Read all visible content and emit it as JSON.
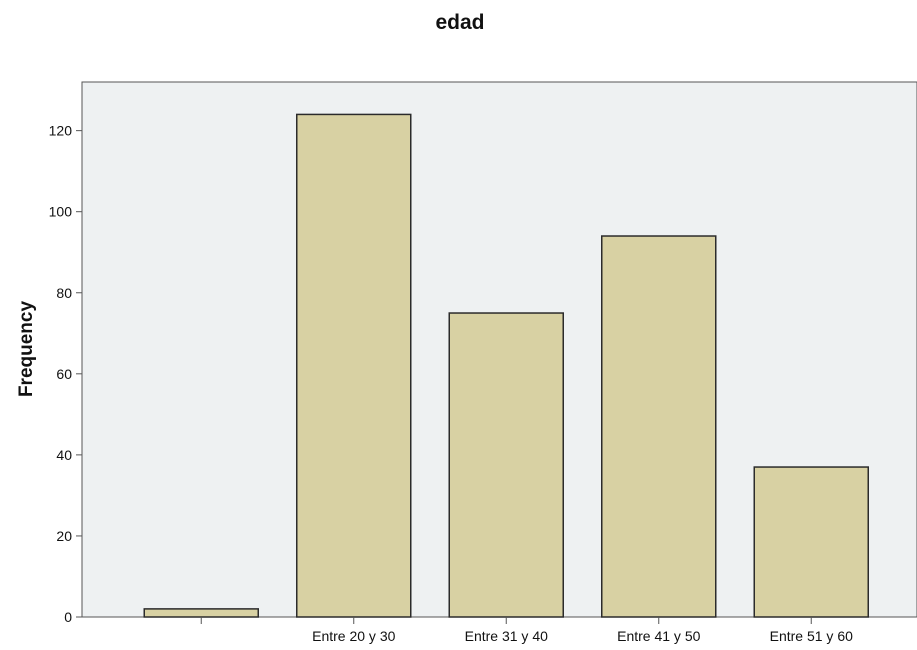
{
  "chart_data": {
    "type": "bar",
    "title": "edad",
    "xlabel": "",
    "ylabel": "Frequency",
    "categories": [
      "",
      "Entre 20 y 30",
      "Entre 31 y 40",
      "Entre 41 y 50",
      "Entre 51 y 60"
    ],
    "values": [
      2,
      124,
      75,
      94,
      37
    ],
    "ylim": [
      0,
      132
    ],
    "yticks": [
      0,
      20,
      40,
      60,
      80,
      100,
      120
    ],
    "grid": false,
    "legend": "none",
    "colors": {
      "bar_fill": "#d8d1a3",
      "bar_stroke": "#2b2b2b",
      "plot_background": "#eef1f2",
      "axis": "#555555"
    }
  }
}
